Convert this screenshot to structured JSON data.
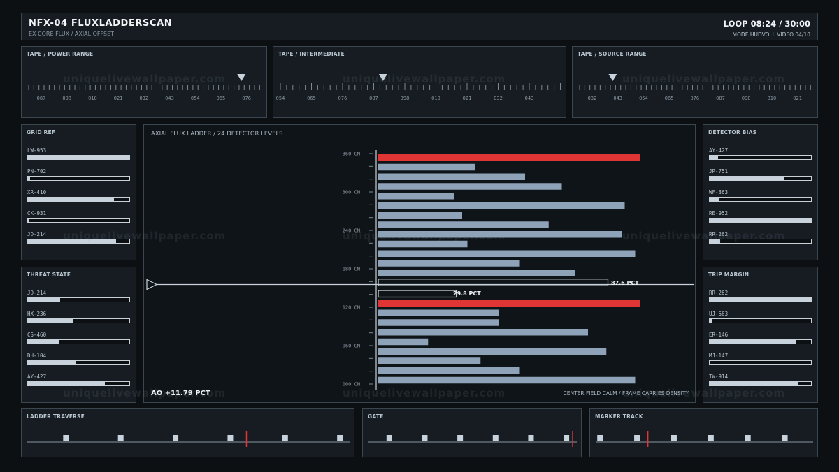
{
  "header": {
    "title": "NFX-04  FLUXLADDERSCAN",
    "subtitle": "EX-CORE FLUX / AXIAL OFFSET",
    "loop": "LOOP 08:24 / 30:00",
    "mode": "MODE HUDVOLL  VIDEO 04/10"
  },
  "tapes": [
    {
      "title": "TAPE / POWER RANGE",
      "labels": [
        "087",
        "098",
        "010",
        "021",
        "032",
        "043",
        "054",
        "065",
        "076"
      ],
      "pointer_index": 7.8
    },
    {
      "title": "TAPE / INTERMEDIATE",
      "labels": [
        "054",
        "065",
        "076",
        "087",
        "098",
        "010",
        "021",
        "032",
        "043"
      ],
      "pointer_index": 3.3
    },
    {
      "title": "TAPE / SOURCE RANGE",
      "labels": [
        "032",
        "043",
        "054",
        "065",
        "076",
        "087",
        "098",
        "010",
        "021"
      ],
      "pointer_index": 0.8
    }
  ],
  "grid_ref": {
    "title": "GRID REF",
    "items": [
      {
        "label": "LW-953",
        "value": 0.99
      },
      {
        "label": "PN-702",
        "value": 0.02
      },
      {
        "label": "XR-410",
        "value": 0.85
      },
      {
        "label": "CK-931",
        "value": 0.01
      },
      {
        "label": "JD-214",
        "value": 0.87
      }
    ]
  },
  "threat_state": {
    "title": "THREAT STATE",
    "items": [
      {
        "label": "JD-214",
        "value": 0.32
      },
      {
        "label": "HX-236",
        "value": 0.45
      },
      {
        "label": "CS-460",
        "value": 0.3
      },
      {
        "label": "DH-104",
        "value": 0.47
      },
      {
        "label": "AY-427",
        "value": 0.76
      }
    ]
  },
  "detector_bias": {
    "title": "DETECTOR BIAS",
    "items": [
      {
        "label": "AY-427",
        "value": 0.08
      },
      {
        "label": "JP-751",
        "value": 0.74
      },
      {
        "label": "WF-363",
        "value": 0.09
      },
      {
        "label": "RE-952",
        "value": 1.0
      },
      {
        "label": "RR-262",
        "value": 0.1
      }
    ]
  },
  "trip_margin": {
    "title": "TRIP MARGIN",
    "items": [
      {
        "label": "RR-262",
        "value": 1.0
      },
      {
        "label": "UJ-663",
        "value": 0.02
      },
      {
        "label": "ER-146",
        "value": 0.85
      },
      {
        "label": "MJ-147",
        "value": 0.01
      },
      {
        "label": "TW-914",
        "value": 0.87
      }
    ]
  },
  "center": {
    "title": "AXIAL FLUX LADDER / 24 DETECTOR LEVELS",
    "ao": "AO +11.79 PCT",
    "footnote": "CENTER FIELD CALM / FRAME CARRIES DENSITY",
    "marker_label_upper": "87.6 PCT",
    "marker_label_lower": "29.8 PCT"
  },
  "chart_data": {
    "type": "bar",
    "orientation": "horizontal",
    "title": "AXIAL FLUX LADDER / 24 DETECTOR LEVELS",
    "y_ticks": [
      "360 CM",
      "300 CM",
      "240 CM",
      "180 CM",
      "120 CM",
      "060 CM",
      "000 CM"
    ],
    "ylim": [
      0,
      360
    ],
    "xlim": [
      0,
      100
    ],
    "levels_top_to_bottom": [
      100,
      37,
      56,
      70,
      29,
      94,
      32,
      65,
      93,
      34,
      98,
      54,
      75,
      87.6,
      29.8,
      100,
      46,
      46,
      80,
      19,
      87,
      39,
      54,
      98
    ],
    "highlight_red_indices": [
      0,
      15
    ],
    "outlined_indices": [
      13,
      14
    ],
    "colors": {
      "normal": "#8ea2b8",
      "alert": "#e03535",
      "outline": "#dfe6ec"
    }
  },
  "bottom": [
    {
      "title": "LADDER TRAVERSE",
      "markers": [
        0.12,
        0.29,
        0.46,
        0.63,
        0.8,
        0.97
      ],
      "red": 0.68
    },
    {
      "title": "GATE",
      "markers": [
        0.1,
        0.27,
        0.44,
        0.61,
        0.78,
        0.95
      ],
      "red": 0.98
    },
    {
      "title": "MARKER TRACK",
      "markers": [
        0.02,
        0.19,
        0.36,
        0.53,
        0.7,
        0.87
      ],
      "red": 0.24
    }
  ],
  "watermark": "uniquelivewallpaper.com"
}
